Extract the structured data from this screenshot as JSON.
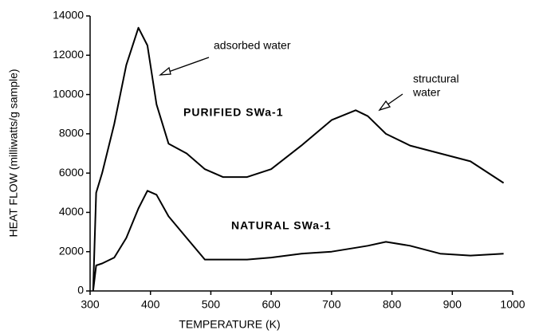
{
  "chart_data": {
    "type": "line",
    "xlabel": "TEMPERATURE (K)",
    "ylabel": "HEAT FLOW (milliwatts/g sample)",
    "x": [
      305,
      310,
      320,
      340,
      360,
      380,
      395,
      410,
      430,
      460,
      490,
      520,
      560,
      600,
      650,
      700,
      740,
      760,
      790,
      830,
      880,
      930,
      985
    ],
    "series": [
      {
        "name": "PURIFIED SWa-1",
        "color": "#000000",
        "values": [
          0,
          5000,
          6000,
          8500,
          11500,
          13400,
          12500,
          9500,
          7500,
          7000,
          6200,
          5800,
          5800,
          6200,
          7400,
          8700,
          9200,
          8900,
          8000,
          7400,
          7000,
          6600,
          5500
        ]
      },
      {
        "name": "NATURAL SWa-1",
        "color": "#000000",
        "values": [
          0,
          1300,
          1400,
          1700,
          2700,
          4200,
          5100,
          4900,
          3800,
          2700,
          1600,
          1600,
          1600,
          1700,
          1900,
          2000,
          2200,
          2300,
          2500,
          2300,
          1900,
          1800,
          1900
        ]
      }
    ],
    "annotations": [
      "adsorbed water",
      "structural",
      "water"
    ],
    "xlim": [
      300,
      1000
    ],
    "xticks": [
      300,
      400,
      500,
      600,
      700,
      800,
      900,
      1000
    ],
    "ylim": [
      0,
      14000
    ],
    "yticks": [
      0,
      2000,
      4000,
      6000,
      8000,
      10000,
      12000,
      14000
    ],
    "grid": false
  }
}
